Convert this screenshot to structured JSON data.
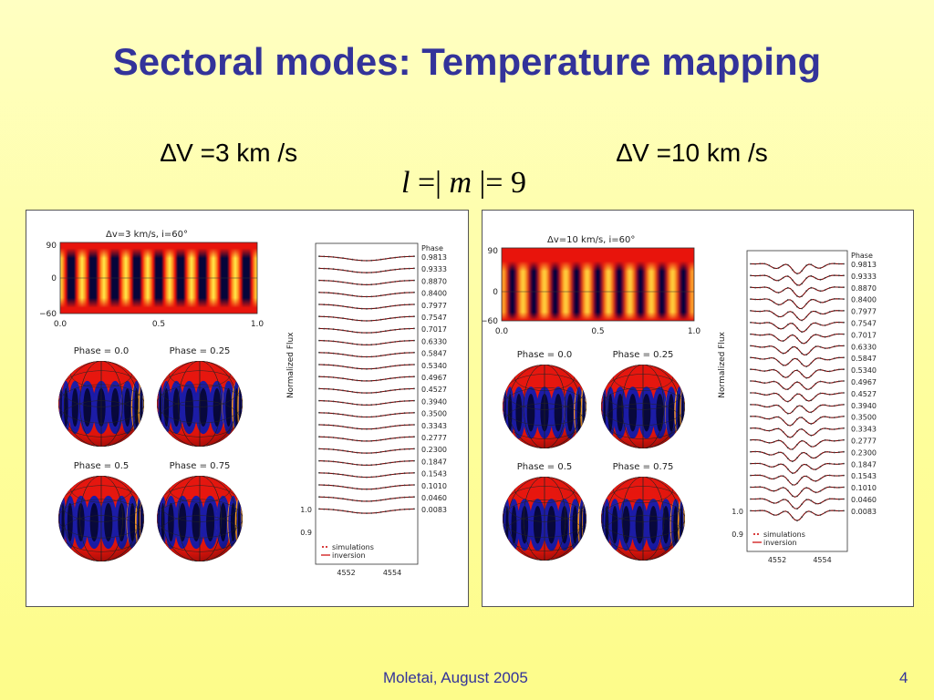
{
  "slide": {
    "title": "Sectoral modes: Temperature mapping",
    "footer": "Moletai, August 2005",
    "page_number": "4"
  },
  "headings": {
    "left": "∆V =3 km /s",
    "right": "∆V =10 km /s",
    "mode_equation": {
      "l": "l",
      "eq1": " =| ",
      "m": "m",
      "eq2": " |= 9"
    }
  },
  "figures": [
    {
      "id": "left",
      "map_title": "Δv=3 km/s, i=60°",
      "map_y_ticks": [
        "90",
        "0",
        "−60"
      ],
      "map_x_ticks": [
        "0.0",
        "0.5",
        "1.0"
      ],
      "n_bands": 9,
      "map_mid_fraction": 0.5,
      "map_blur": 0,
      "sphere_labels": [
        "Phase = 0.0",
        "Phase = 0.25",
        "Phase = 0.5",
        "Phase = 0.75"
      ],
      "profile_axis_label": "Normalized Flux",
      "profile_y_ticks": [
        "1.0",
        "0.9"
      ],
      "profile_x_ticks": [
        "4552",
        "4554"
      ],
      "legend": [
        "simulations",
        "inversion"
      ],
      "phase_header": "Phase",
      "phases": [
        "0.9813",
        "0.9333",
        "0.8870",
        "0.8400",
        "0.7977",
        "0.7547",
        "0.7017",
        "0.6330",
        "0.5847",
        "0.5340",
        "0.4967",
        "0.4527",
        "0.3940",
        "0.3500",
        "0.3343",
        "0.2777",
        "0.2300",
        "0.1847",
        "0.1543",
        "0.1010",
        "0.0460",
        "0.0083"
      ],
      "line_depth": 0.3,
      "bumps": 0
    },
    {
      "id": "right",
      "map_title": "Δv=10 km/s, i=60°",
      "map_y_ticks": [
        "90",
        "0",
        "−60"
      ],
      "map_x_ticks": [
        "0.0",
        "0.5",
        "1.0"
      ],
      "n_bands": 9,
      "map_mid_fraction": 0.6,
      "map_blur": 1.5,
      "sphere_labels": [
        "Phase = 0.0",
        "Phase = 0.25",
        "Phase = 0.5",
        "Phase = 0.75"
      ],
      "profile_axis_label": "Normalized Flux",
      "profile_y_ticks": [
        "1.0",
        "0.9"
      ],
      "profile_x_ticks": [
        "4552",
        "4554"
      ],
      "legend": [
        "simulations",
        "inversion"
      ],
      "phase_header": "Phase",
      "phases": [
        "0.9813",
        "0.9333",
        "0.8870",
        "0.8400",
        "0.7977",
        "0.7547",
        "0.7017",
        "0.6330",
        "0.5847",
        "0.5340",
        "0.4967",
        "0.4527",
        "0.3940",
        "0.3500",
        "0.3343",
        "0.2777",
        "0.2300",
        "0.1847",
        "0.1543",
        "0.1010",
        "0.0460",
        "0.0083"
      ],
      "line_depth": 0.7,
      "bumps": 4
    }
  ],
  "colors": {
    "title": "#33339a",
    "map_red": "#e8140c",
    "map_yellow": "#ffe94a",
    "map_blue": "#1a1aa8",
    "map_dark": "#05053a",
    "profile_line": "#7a0a0a",
    "profile_points": "#3a3a3a",
    "legend_inversion": "#cc0000"
  }
}
